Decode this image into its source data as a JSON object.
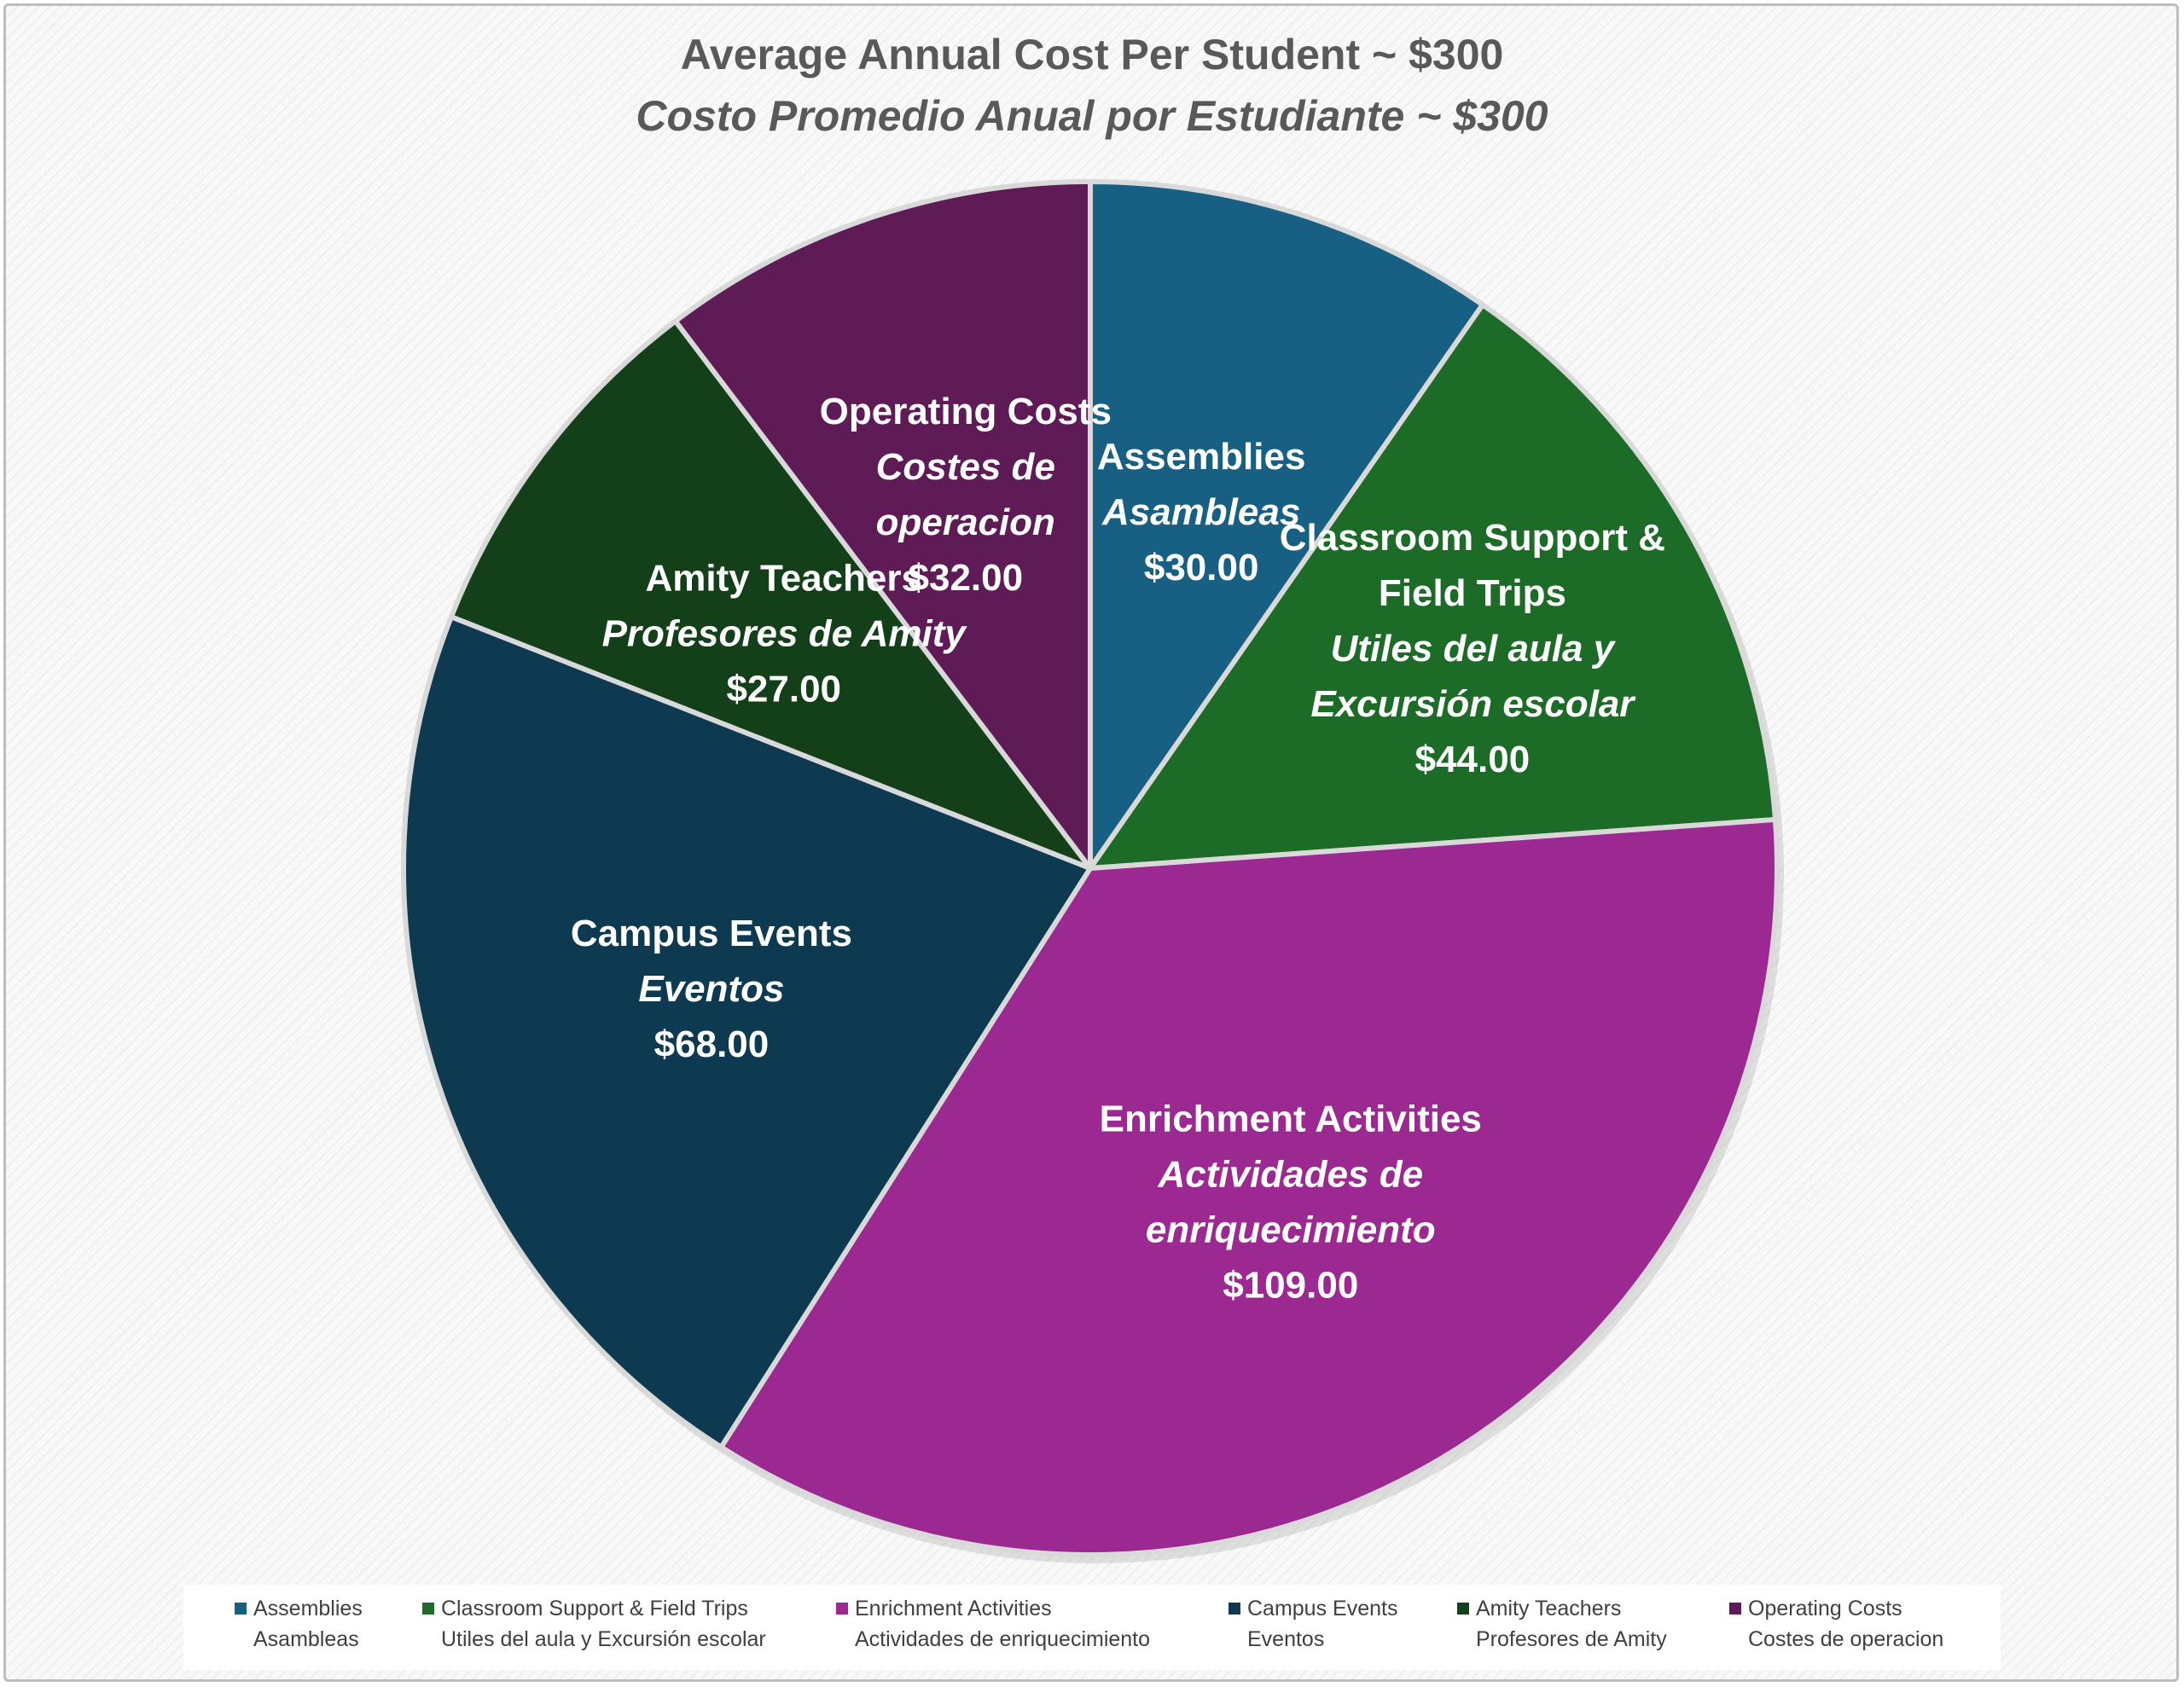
{
  "title": "Average Annual Cost Per Student ~ $300",
  "subtitle": "Costo Promedio Anual por Estudiante ~ $300",
  "chart_data": {
    "type": "pie",
    "start_angle_deg": 0,
    "direction": "clockwise",
    "slices": [
      {
        "label": "Assemblies",
        "label_es": "Asambleas",
        "value": 30,
        "value_label": "$30.00",
        "color": "#176084",
        "data_label_lines": [
          {
            "text": "Assemblies",
            "italic": false
          },
          {
            "text": "Asambleas",
            "italic": true
          },
          {
            "text": "$30.00",
            "italic": false
          }
        ]
      },
      {
        "label": "Classroom Support & Field Trips",
        "label_es": "Utiles del aula y Excursión escolar",
        "value": 44,
        "value_label": "$44.00",
        "color": "#1c6b26",
        "data_label_lines": [
          {
            "text": "Classroom Support &",
            "italic": false
          },
          {
            "text": "Field Trips",
            "italic": false
          },
          {
            "text": "Utiles del aula y",
            "italic": true
          },
          {
            "text": "Excursión escolar",
            "italic": true
          },
          {
            "text": "$44.00",
            "italic": false
          }
        ]
      },
      {
        "label": "Enrichment Activities",
        "label_es": "Actividades de enriquecimiento",
        "value": 109,
        "value_label": "$109.00",
        "color": "#9c2992",
        "data_label_lines": [
          {
            "text": "Enrichment Activities",
            "italic": false
          },
          {
            "text": "Actividades de",
            "italic": true
          },
          {
            "text": "enriquecimiento",
            "italic": true
          },
          {
            "text": "$109.00",
            "italic": false
          }
        ]
      },
      {
        "label": "Campus Events",
        "label_es": "Eventos",
        "value": 68,
        "value_label": "$68.00",
        "color": "#0e3a51",
        "data_label_lines": [
          {
            "text": "Campus Events",
            "italic": false
          },
          {
            "text": "Eventos",
            "italic": true
          },
          {
            "text": "$68.00",
            "italic": false
          }
        ]
      },
      {
        "label": "Amity Teachers",
        "label_es": "Profesores de Amity",
        "value": 27,
        "value_label": "$27.00",
        "color": "#133f19",
        "data_label_lines": [
          {
            "text": "Amity Teachers",
            "italic": false
          },
          {
            "text": "Profesores de Amity",
            "italic": true
          },
          {
            "text": "$27.00",
            "italic": false
          }
        ]
      },
      {
        "label": "Operating Costs",
        "label_es": "Costes de operacion",
        "value": 32,
        "value_label": "$32.00",
        "color": "#5e1b55",
        "data_label_lines": [
          {
            "text": "Operating Costs",
            "italic": false
          },
          {
            "text": "Costes de",
            "italic": true
          },
          {
            "text": "operacion",
            "italic": true
          },
          {
            "text": "$32.00",
            "italic": false
          }
        ]
      }
    ],
    "legend_position": "bottom",
    "legend": [
      {
        "line1": "Assemblies",
        "line2": "Asambleas",
        "color": "#176084"
      },
      {
        "line1": "Classroom Support & Field Trips",
        "line2": "Utiles del aula y Excursión escolar",
        "color": "#1c6b26"
      },
      {
        "line1": "Enrichment Activities",
        "line2": "Actividades de enriquecimiento",
        "color": "#9c2992"
      },
      {
        "line1": "Campus Events",
        "line2": "Eventos",
        "color": "#0e3a51"
      },
      {
        "line1": "Amity Teachers",
        "line2": "Profesores de Amity",
        "color": "#133f19"
      },
      {
        "line1": "Operating Costs",
        "line2": "Costes de operacion",
        "color": "#5e1b55"
      }
    ]
  }
}
